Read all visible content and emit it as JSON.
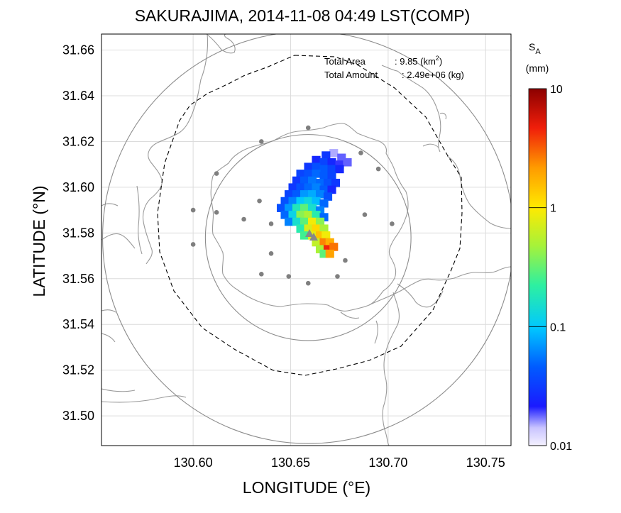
{
  "chart_data": {
    "type": "heatmap",
    "title": "SAKURAJIMA, 2014-11-08 04:49 LST(COMP)",
    "xlabel": "LONGITUDE (°E)",
    "ylabel": "LATITUDE (°N)",
    "xlim": [
      130.553,
      130.763
    ],
    "ylim": [
      31.487,
      31.667
    ],
    "xticks": [
      "130.60",
      "130.65",
      "130.70",
      "130.75"
    ],
    "xtick_values": [
      130.6,
      130.65,
      130.7,
      130.75
    ],
    "yticks": [
      "31.50",
      "31.52",
      "31.54",
      "31.56",
      "31.58",
      "31.60",
      "31.62",
      "31.64",
      "31.66"
    ],
    "ytick_values": [
      31.5,
      31.52,
      31.54,
      31.56,
      31.58,
      31.6,
      31.62,
      31.64,
      31.66
    ],
    "grid": true,
    "annotation": {
      "total_area_label": "Total Area",
      "total_area_value": ": 9.85 (km",
      "total_area_sup": "2",
      "total_area_close": ")",
      "total_amount_label": "Total Amount",
      "total_amount_value": ": 2.49e+06 (kg)"
    },
    "colorbar": {
      "title_main": "S",
      "title_sub": "A",
      "unit": "(mm)",
      "scale": "log",
      "range": [
        0.01,
        10
      ],
      "ticks": [
        "0.01",
        "0.1",
        "1",
        "10"
      ],
      "tick_values": [
        0.01,
        0.1,
        1,
        10
      ],
      "colormap": "jet-like, white-lavender at 0.01, dark red at 10"
    },
    "vent": {
      "lon": 130.661,
      "lat": 31.581
    },
    "range_circles": [
      {
        "center_lon": 130.659,
        "center_lat": 31.578,
        "radius_km": 5
      },
      {
        "center_lon": 130.659,
        "center_lat": 31.578,
        "radius_km": 10
      }
    ],
    "stations": [
      [
        130.659,
        31.626
      ],
      [
        130.635,
        31.62
      ],
      [
        130.686,
        31.615
      ],
      [
        130.612,
        31.606
      ],
      [
        130.695,
        31.608
      ],
      [
        130.6,
        31.59
      ],
      [
        130.612,
        31.589
      ],
      [
        130.626,
        31.586
      ],
      [
        130.634,
        31.594
      ],
      [
        130.64,
        31.584
      ],
      [
        130.66,
        31.599
      ],
      [
        130.688,
        31.588
      ],
      [
        130.702,
        31.584
      ],
      [
        130.6,
        31.575
      ],
      [
        130.64,
        31.571
      ],
      [
        130.678,
        31.568
      ],
      [
        130.635,
        31.562
      ],
      [
        130.649,
        31.561
      ],
      [
        130.659,
        31.558
      ],
      [
        130.674,
        31.561
      ]
    ],
    "ash_cells_columns": [
      "lon",
      "lat",
      "value_mm"
    ],
    "ash_cells": [
      [
        130.672,
        31.615,
        0.015
      ],
      [
        130.676,
        31.613,
        0.018
      ],
      [
        130.668,
        31.614,
        0.03
      ],
      [
        130.663,
        31.612,
        0.025
      ],
      [
        130.667,
        31.611,
        0.035
      ],
      [
        130.671,
        31.611,
        0.025
      ],
      [
        130.675,
        31.61,
        0.02
      ],
      [
        130.679,
        31.611,
        0.018
      ],
      [
        130.659,
        31.609,
        0.03
      ],
      [
        130.663,
        31.609,
        0.04
      ],
      [
        130.667,
        31.608,
        0.045
      ],
      [
        130.671,
        31.608,
        0.035
      ],
      [
        130.675,
        31.608,
        0.025
      ],
      [
        130.655,
        31.606,
        0.035
      ],
      [
        130.659,
        31.606,
        0.04
      ],
      [
        130.663,
        31.606,
        0.05
      ],
      [
        130.667,
        31.605,
        0.045
      ],
      [
        130.671,
        31.605,
        0.035
      ],
      [
        130.653,
        31.603,
        0.03
      ],
      [
        130.657,
        31.603,
        0.045
      ],
      [
        130.661,
        31.603,
        0.055
      ],
      [
        130.665,
        31.602,
        0.05
      ],
      [
        130.669,
        31.602,
        0.04
      ],
      [
        130.673,
        31.602,
        0.03
      ],
      [
        130.651,
        31.6,
        0.03
      ],
      [
        130.655,
        31.6,
        0.04
      ],
      [
        130.659,
        31.6,
        0.05
      ],
      [
        130.663,
        31.6,
        0.06
      ],
      [
        130.667,
        31.599,
        0.045
      ],
      [
        130.671,
        31.599,
        0.025
      ],
      [
        130.649,
        31.597,
        0.035
      ],
      [
        130.653,
        31.597,
        0.045
      ],
      [
        130.657,
        31.597,
        0.07
      ],
      [
        130.661,
        31.597,
        0.08
      ],
      [
        130.665,
        31.597,
        0.06
      ],
      [
        130.669,
        31.596,
        0.04
      ],
      [
        130.647,
        31.594,
        0.04
      ],
      [
        130.651,
        31.594,
        0.06
      ],
      [
        130.655,
        31.594,
        0.1
      ],
      [
        130.659,
        31.594,
        0.13
      ],
      [
        130.663,
        31.594,
        0.09
      ],
      [
        130.667,
        31.593,
        0.05
      ],
      [
        130.645,
        31.591,
        0.04
      ],
      [
        130.649,
        31.591,
        0.07
      ],
      [
        130.653,
        31.591,
        0.18
      ],
      [
        130.657,
        31.591,
        0.3
      ],
      [
        130.661,
        31.591,
        0.15
      ],
      [
        130.665,
        31.59,
        0.06
      ],
      [
        130.647,
        31.588,
        0.05
      ],
      [
        130.651,
        31.588,
        0.12
      ],
      [
        130.655,
        31.588,
        0.4
      ],
      [
        130.659,
        31.588,
        0.5
      ],
      [
        130.663,
        31.588,
        0.2
      ],
      [
        130.667,
        31.587,
        0.05
      ],
      [
        130.649,
        31.585,
        0.06
      ],
      [
        130.653,
        31.585,
        0.15
      ],
      [
        130.657,
        31.585,
        0.3
      ],
      [
        130.661,
        31.585,
        0.9
      ],
      [
        130.665,
        31.585,
        0.4
      ],
      [
        130.655,
        31.582,
        0.2
      ],
      [
        130.659,
        31.582,
        0.7
      ],
      [
        130.663,
        31.582,
        1.2
      ],
      [
        130.667,
        31.582,
        0.5
      ],
      [
        130.657,
        31.579,
        0.25
      ],
      [
        130.661,
        31.579,
        0.8
      ],
      [
        130.665,
        31.579,
        1.5
      ],
      [
        130.668,
        31.579,
        0.9
      ],
      [
        130.663,
        31.576,
        0.6
      ],
      [
        130.667,
        31.576,
        2.5
      ],
      [
        130.67,
        31.576,
        1.8
      ],
      [
        130.665,
        31.573,
        0.5
      ],
      [
        130.669,
        31.573,
        4.5
      ],
      [
        130.672,
        31.574,
        2.8
      ],
      [
        130.667,
        31.571,
        0.3
      ],
      [
        130.67,
        31.571,
        2.0
      ]
    ]
  }
}
